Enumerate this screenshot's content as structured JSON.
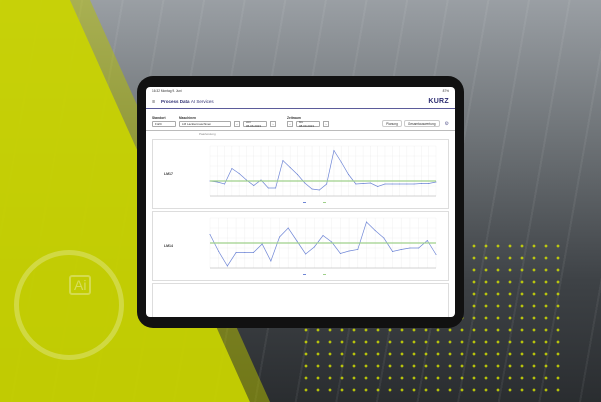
{
  "status_bar": {
    "time": "16:32",
    "date": "Montag 9. Juni",
    "battery": "87%"
  },
  "header": {
    "app": "Process Data",
    "section": "AI Services",
    "logo": "KURZ"
  },
  "filters": {
    "standort_label": "Standort",
    "standort_value": "Fürth",
    "maschinen_label": "Maschinen",
    "maschinen_value": "LM Lackiermaschinen",
    "from_date": "von 05.06.2023",
    "zeitraum_label": "Zeitraum",
    "to_date": "bis 08.09.2023",
    "planung": "Planung",
    "gesamtauswertung": "Gesamtauswertung"
  },
  "subtitle": "Paarleistung",
  "colors": {
    "accent": "#2d2d72",
    "series": "#6f86d6",
    "target": "#9fd08a",
    "brand_yellow": "#c9d400"
  },
  "chart_data": [
    {
      "type": "line",
      "title": "LM17",
      "series": [
        {
          "values": [
            3.0,
            2.8,
            2.4,
            5.5,
            4.5,
            3.2,
            2.1,
            3.2,
            1.6,
            1.6,
            7.1,
            5.7,
            4.3,
            2.6,
            1.4,
            1.2,
            2.4,
            9.1,
            6.8,
            4.3,
            2.4,
            2.5,
            2.6,
            1.9,
            2.4,
            2.4,
            2.4,
            2.4,
            2.4,
            2.5,
            2.5,
            2.8
          ]
        },
        {
          "values": [
            3,
            3,
            3,
            3,
            3,
            3,
            3,
            3,
            3,
            3,
            3,
            3,
            3,
            3,
            3,
            3,
            3,
            3,
            3,
            3,
            3,
            3,
            3,
            3,
            3,
            3,
            3,
            3,
            3,
            3,
            3,
            3
          ]
        }
      ],
      "ylim": [
        0,
        10
      ]
    },
    {
      "type": "line",
      "title": "LM14",
      "series": [
        {
          "values": [
            6.7,
            3.3,
            0.4,
            3.1,
            3.1,
            3.1,
            4.8,
            1.4,
            6.2,
            8.0,
            5.4,
            2.8,
            4.2,
            6.5,
            5.2,
            2.9,
            3.4,
            3.7,
            9.2,
            7.5,
            6.0,
            3.3,
            3.7,
            4.0,
            4.0,
            5.5,
            2.7
          ]
        },
        {
          "values": [
            5,
            5,
            5,
            5,
            5,
            5,
            5,
            5,
            5,
            5,
            5,
            5,
            5,
            5,
            5,
            5,
            5,
            5,
            5,
            5,
            5,
            5,
            5,
            5,
            5,
            5,
            5
          ]
        }
      ],
      "ylim": [
        0,
        10
      ]
    }
  ]
}
